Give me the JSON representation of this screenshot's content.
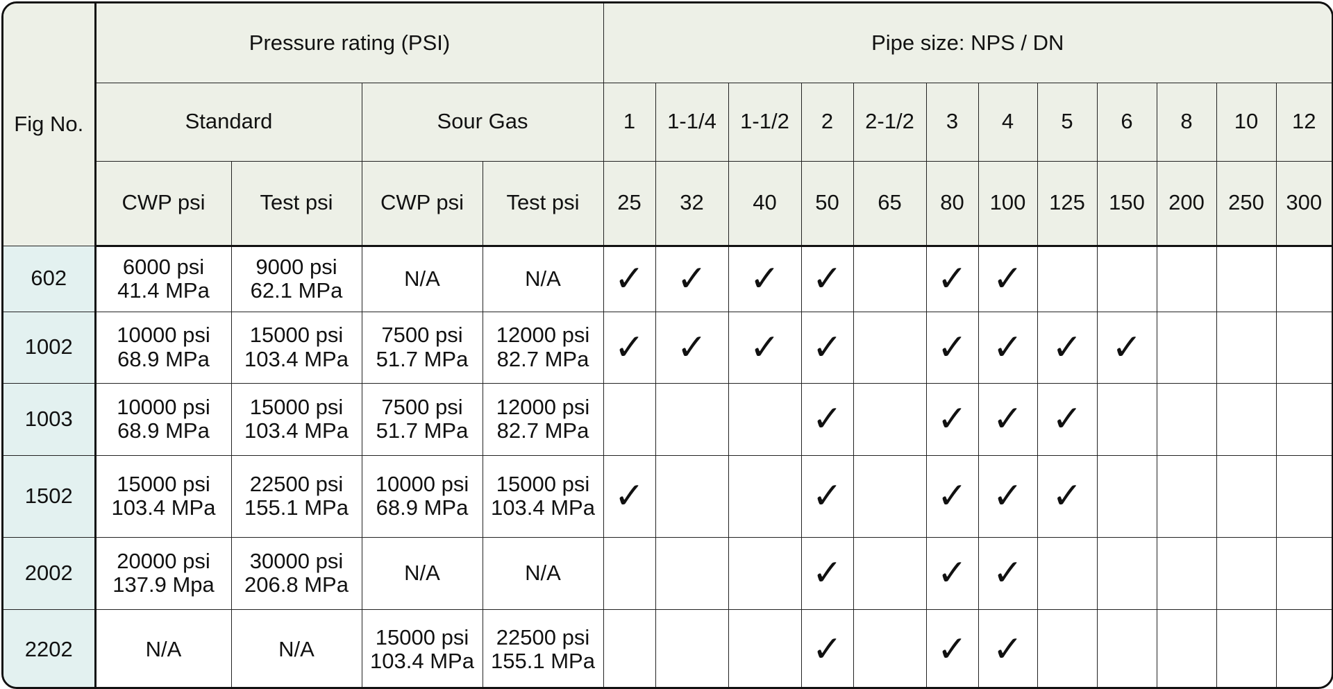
{
  "header": {
    "fig_label": "Fig No.",
    "pressure_group": "Pressure rating (PSI)",
    "pipe_group": "Pipe size: NPS / DN",
    "standard": "Standard",
    "sour_gas": "Sour Gas",
    "cwp": "CWP psi",
    "test": "Test psi",
    "nps": [
      "1",
      "1-1/4",
      "1-1/2",
      "2",
      "2-1/2",
      "3",
      "4",
      "5",
      "6",
      "8",
      "10",
      "12"
    ],
    "dn": [
      "25",
      "32",
      "40",
      "50",
      "65",
      "80",
      "100",
      "125",
      "150",
      "200",
      "250",
      "300"
    ]
  },
  "check_mark": "✓",
  "rows": [
    {
      "fig": "602",
      "std_cwp": [
        "6000 psi",
        "41.4 MPa"
      ],
      "std_test": [
        "9000 psi",
        "62.1 MPa"
      ],
      "sour_cwp": [
        "N/A",
        ""
      ],
      "sour_test": [
        "N/A",
        ""
      ],
      "sizes": [
        true,
        true,
        true,
        true,
        false,
        true,
        true,
        false,
        false,
        false,
        false,
        false
      ]
    },
    {
      "fig": "1002",
      "std_cwp": [
        "10000 psi",
        "68.9 MPa"
      ],
      "std_test": [
        "15000 psi",
        "103.4 MPa"
      ],
      "sour_cwp": [
        "7500 psi",
        "51.7 MPa"
      ],
      "sour_test": [
        "12000 psi",
        "82.7 MPa"
      ],
      "sizes": [
        true,
        true,
        true,
        true,
        false,
        true,
        true,
        true,
        true,
        false,
        false,
        false
      ]
    },
    {
      "fig": "1003",
      "std_cwp": [
        "10000 psi",
        "68.9 MPa"
      ],
      "std_test": [
        "15000 psi",
        "103.4 MPa"
      ],
      "sour_cwp": [
        "7500 psi",
        "51.7 MPa"
      ],
      "sour_test": [
        "12000 psi",
        "82.7 MPa"
      ],
      "sizes": [
        false,
        false,
        false,
        true,
        false,
        true,
        true,
        true,
        false,
        false,
        false,
        false
      ]
    },
    {
      "fig": "1502",
      "std_cwp": [
        "15000 psi",
        "103.4 MPa"
      ],
      "std_test": [
        "22500 psi",
        "155.1 MPa"
      ],
      "sour_cwp": [
        "10000 psi",
        "68.9 MPa"
      ],
      "sour_test": [
        "15000 psi",
        "103.4 MPa"
      ],
      "sizes": [
        true,
        false,
        false,
        true,
        false,
        true,
        true,
        true,
        false,
        false,
        false,
        false
      ]
    },
    {
      "fig": "2002",
      "std_cwp": [
        "20000 psi",
        "137.9 Mpa"
      ],
      "std_test": [
        "30000 psi",
        "206.8 MPa"
      ],
      "sour_cwp": [
        "N/A",
        ""
      ],
      "sour_test": [
        "N/A",
        ""
      ],
      "sizes": [
        false,
        false,
        false,
        true,
        false,
        true,
        true,
        false,
        false,
        false,
        false,
        false
      ]
    },
    {
      "fig": "2202",
      "std_cwp": [
        "N/A",
        ""
      ],
      "std_test": [
        "N/A",
        ""
      ],
      "sour_cwp": [
        "15000 psi",
        "103.4 MPa"
      ],
      "sour_test": [
        "22500 psi",
        "155.1 MPa"
      ],
      "sizes": [
        false,
        false,
        false,
        true,
        false,
        true,
        true,
        false,
        false,
        false,
        false,
        false
      ]
    }
  ]
}
